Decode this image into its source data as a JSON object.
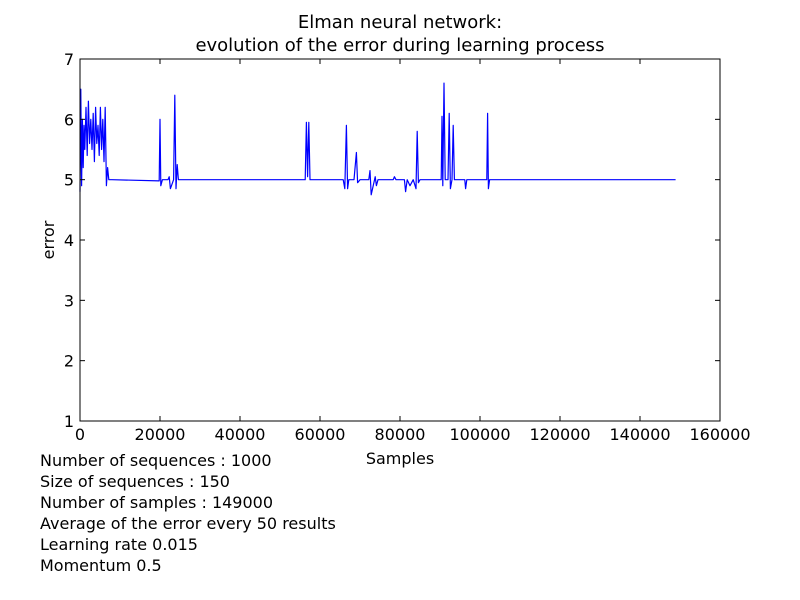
{
  "chart_data": {
    "type": "line",
    "title": "Elman neural network:",
    "subtitle": "evolution of the error during learning process",
    "xlabel": "Samples",
    "ylabel": "error",
    "xlim": [
      0,
      160000
    ],
    "ylim": [
      1,
      7
    ],
    "xticks": [
      0,
      20000,
      40000,
      60000,
      80000,
      100000,
      120000,
      140000,
      160000
    ],
    "yticks": [
      1,
      2,
      3,
      4,
      5,
      6,
      7
    ],
    "grid": false,
    "line_color": "#0000ff",
    "series": [
      {
        "x": [
          0,
          200,
          400,
          600,
          800,
          1000,
          1200,
          1500,
          1800,
          2100,
          2400,
          2700,
          3000,
          3300,
          3600,
          3900,
          4200,
          4500,
          4800,
          5100,
          5400,
          5700,
          6000,
          6300,
          6600,
          6900,
          7200,
          7500,
          8000,
          19800,
          20000,
          20200,
          20600,
          22000,
          22300,
          22600,
          23400,
          23700,
          24000,
          24300,
          24600,
          56300,
          56600,
          56900,
          57200,
          57500,
          65800,
          66200,
          66600,
          66900,
          67200,
          67700,
          68500,
          69100,
          69400,
          70000,
          72200,
          72500,
          72800,
          73800,
          74100,
          74500,
          78300,
          78600,
          79000,
          81100,
          81400,
          81800,
          82500,
          83300,
          84000,
          84300,
          84600,
          85000,
          85500,
          90300,
          90500,
          90700,
          91000,
          91300,
          92000,
          92300,
          92600,
          93000,
          93300,
          93600,
          96200,
          96400,
          96700,
          101700,
          101900,
          102100,
          102400,
          148900
        ],
        "y": [
          4.8,
          6.5,
          4.9,
          6.0,
          5.2,
          5.9,
          5.5,
          6.2,
          5.4,
          6.3,
          5.6,
          6.0,
          5.5,
          6.1,
          5.3,
          6.2,
          5.6,
          5.9,
          5.4,
          6.2,
          5.5,
          6.0,
          5.3,
          6.2,
          4.9,
          5.2,
          5.0,
          5.0,
          5.0,
          4.98,
          6.0,
          4.9,
          5.0,
          5.0,
          5.05,
          4.85,
          5.0,
          6.4,
          4.85,
          5.25,
          5.0,
          5.0,
          5.95,
          5.05,
          5.95,
          5.0,
          5.0,
          4.85,
          5.9,
          4.85,
          5.0,
          5.0,
          5.0,
          5.45,
          4.95,
          5.0,
          5.0,
          5.15,
          4.75,
          5.05,
          4.9,
          5.0,
          5.0,
          5.05,
          5.0,
          5.0,
          4.8,
          5.0,
          4.9,
          5.0,
          4.85,
          5.8,
          4.95,
          5.0,
          5.0,
          5.0,
          6.05,
          4.9,
          6.6,
          5.0,
          5.0,
          6.1,
          4.85,
          5.0,
          5.9,
          5.0,
          5.0,
          4.85,
          5.0,
          5.0,
          6.1,
          4.85,
          5.0,
          5.0
        ]
      }
    ]
  },
  "notes": [
    "Number of sequences : 1000",
    "Size of sequences : 150",
    "Number of samples : 149000",
    "Average of the error every 50 results",
    "Learning rate 0.015",
    "Momentum 0.5"
  ]
}
